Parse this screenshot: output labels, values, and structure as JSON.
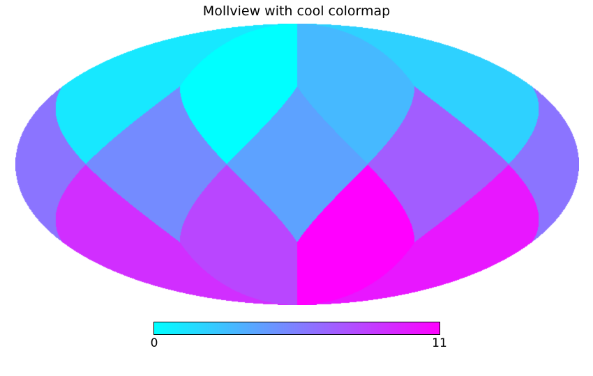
{
  "title": "Mollview with cool colormap",
  "colorbar": {
    "min_label": "0",
    "max_label": "11",
    "start_color": "#00ffff",
    "end_color": "#ff00ff"
  },
  "chart_data": {
    "type": "heatmap",
    "subtype": "healpix-mollweide-sky-map",
    "projection": "mollweide",
    "nside": 1,
    "ordering": "ring",
    "npix": 12,
    "values": [
      0,
      1,
      2,
      3,
      4,
      5,
      6,
      7,
      8,
      9,
      10,
      11
    ],
    "vmin": 0,
    "vmax": 11,
    "colormap": "cool",
    "title": "Mollview with cool colormap",
    "colorbar_ticks": [
      "0",
      "11"
    ],
    "orientation": "astro: longitude 0 at center, increasing leftward; lat +90 at top",
    "pixel_colors": [
      "#00ffff",
      "#17e8ff",
      "#2ed1ff",
      "#46b9ff",
      "#5da2ff",
      "#748bff",
      "#8b74ff",
      "#a25dff",
      "#b946ff",
      "#d12eff",
      "#e817ff",
      "#ff00ff"
    ],
    "grid": false,
    "legend": false
  }
}
